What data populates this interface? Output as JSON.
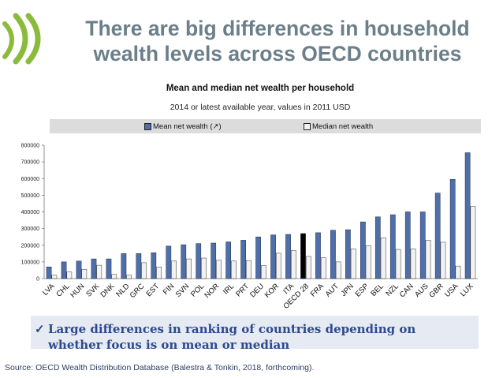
{
  "title": "There are big differences in household wealth levels across OECD countries",
  "callout": {
    "check_glyph": "✓",
    "text": "Large differences in ranking of countries depending on whether focus is on mean or median"
  },
  "source": "Source: OECD Wealth Distribution Database (Balestra & Tonkin, 2018, forthcoming).",
  "colors": {
    "title": "#6b7f8a",
    "mean_bar": "#4f6faa",
    "median_bar": "#f2f2f2",
    "highlight_bar": "#000000",
    "logo": "#8bbb3a",
    "callout_bg": "#e6eaf3",
    "callout_text": "#2c4a8c"
  },
  "logo_icon": "oecd-logo",
  "chart_data": {
    "type": "bar",
    "title": "Mean and median net wealth per household",
    "subtitle": "2014 or latest available year, values in 2011 USD",
    "legend_position": "top",
    "grid": false,
    "xlabel": "",
    "ylabel": "",
    "ylim": [
      0,
      800000
    ],
    "yticks": [
      "0",
      "100000",
      "200000",
      "300000",
      "400000",
      "500000",
      "600000",
      "700000",
      "800000"
    ],
    "highlight_category": "OECD 28",
    "categories": [
      "LVA",
      "CHL",
      "HUN",
      "SVK",
      "DNK",
      "NLD",
      "GRC",
      "EST",
      "FIN",
      "SVN",
      "POL",
      "NOR",
      "IRL",
      "PRT",
      "DEU",
      "KOR",
      "ITA",
      "OECD 28",
      "FRA",
      "AUT",
      "JPN",
      "ESP",
      "BEL",
      "NZL",
      "CAN",
      "AUS",
      "GBR",
      "USA",
      "LUX"
    ],
    "series": [
      {
        "name": "Mean net wealth (↗)",
        "values": [
          70000,
          100000,
          105000,
          118000,
          118000,
          150000,
          150000,
          155000,
          195000,
          203000,
          210000,
          213000,
          220000,
          230000,
          250000,
          262000,
          265000,
          270000,
          275000,
          290000,
          293000,
          340000,
          370000,
          383000,
          400000,
          400000,
          513000,
          595000,
          755000
        ]
      },
      {
        "name": "Median net wealth",
        "values": [
          20000,
          40000,
          55000,
          80000,
          25000,
          20000,
          95000,
          70000,
          105000,
          118000,
          123000,
          110000,
          105000,
          108000,
          78000,
          152000,
          168000,
          133000,
          125000,
          100000,
          178000,
          198000,
          245000,
          175000,
          178000,
          230000,
          218000,
          75000,
          432000
        ]
      }
    ]
  }
}
